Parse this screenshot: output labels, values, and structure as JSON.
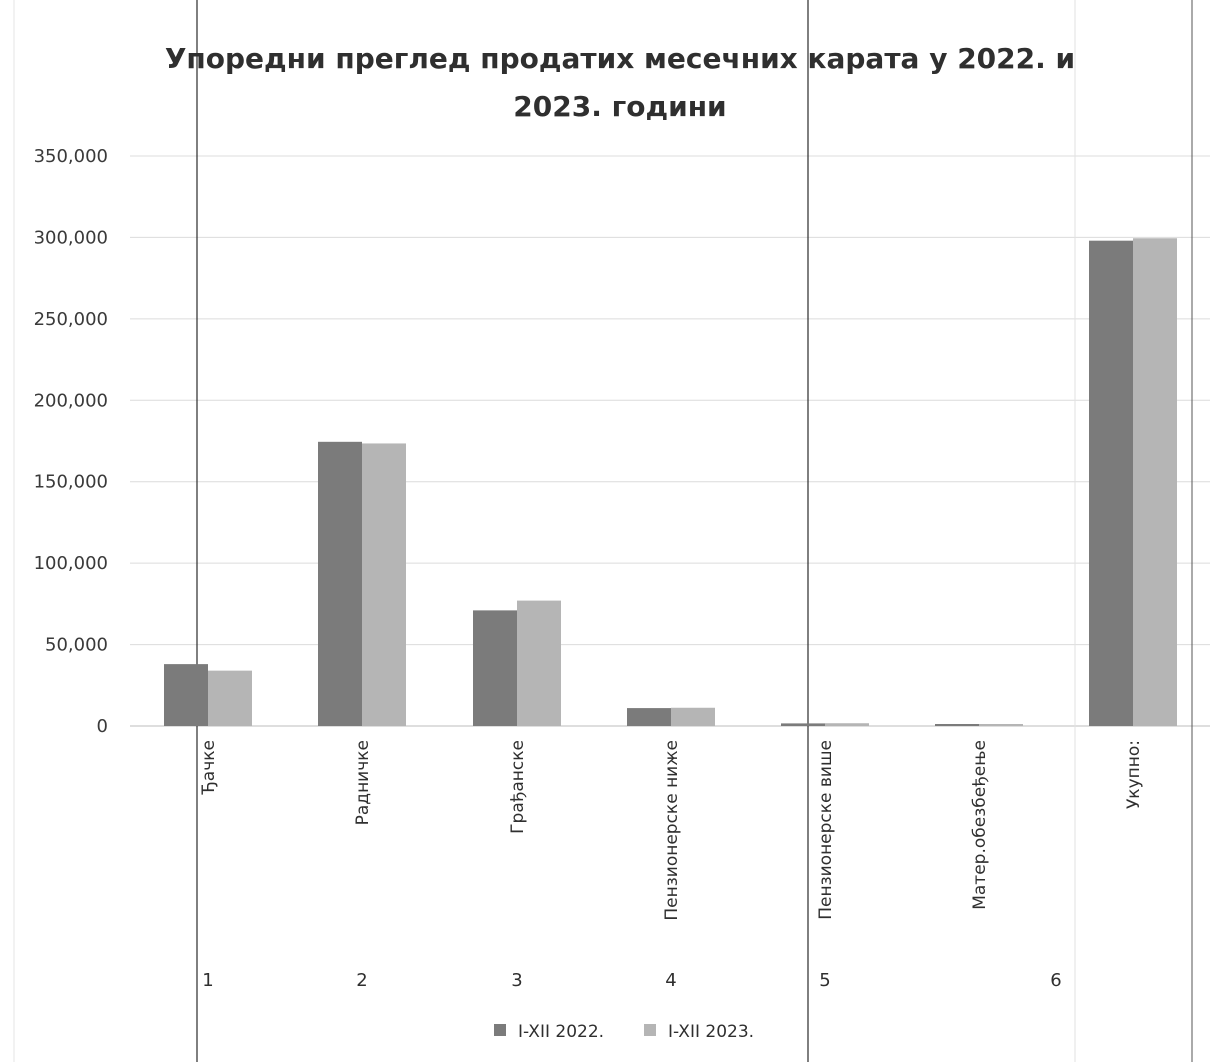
{
  "chart_data": {
    "type": "bar",
    "title_lines": [
      "Упоредни преглед продатих месечних карата у 2022. и",
      "2023. години"
    ],
    "categories": [
      "Ђачке",
      "Радничке",
      "Грађанске",
      "Пензионерске ниже",
      "Пензионерске више",
      "Матер.обезбеђење",
      "Укупно:"
    ],
    "category_numbers": [
      "1",
      "2",
      "3",
      "4",
      "5",
      "6"
    ],
    "series": [
      {
        "name": "I-XII 2022.",
        "color": "#7b7b7b",
        "values": [
          38000,
          174500,
          71000,
          11000,
          1600,
          600,
          298000
        ]
      },
      {
        "name": "I-XII 2023.",
        "color": "#b5b5b5",
        "values": [
          34000,
          173500,
          77000,
          11200,
          1700,
          500,
          299500
        ]
      }
    ],
    "y_ticks": [
      "0",
      "50,000",
      "100,000",
      "150,000",
      "200,000",
      "250,000",
      "300,000",
      "350,000"
    ],
    "ylim": [
      0,
      350000
    ],
    "grid": true,
    "legend": "bottom",
    "xlabel": "",
    "ylabel": ""
  }
}
